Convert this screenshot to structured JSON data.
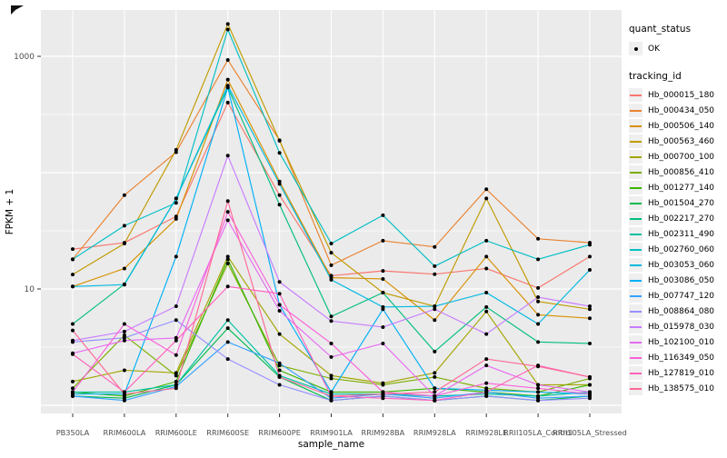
{
  "figure": {
    "panel_bg": "#EBEBEB",
    "grid_color": "#FFFFFF",
    "point_color": "#000000",
    "tick_color": "#333333",
    "axis_text_color": "#4D4D4D",
    "legend_key_bg": "#EFEFEF"
  },
  "axes": {
    "x_title": "sample_name",
    "y_title": "FPKM + 1",
    "y_ticks": [
      {
        "label": "1000",
        "value": 1000
      },
      {
        "label": "10",
        "value": 10
      }
    ]
  },
  "legend": {
    "quant_title": "quant_status",
    "quant_items": [
      {
        "label": "OK",
        "shape": "point"
      }
    ],
    "tracking_title": "tracking_id"
  },
  "chart_data": {
    "type": "line",
    "title": "",
    "xlabel": "sample_name",
    "ylabel": "FPKM + 1",
    "yscale": "log10",
    "ylim": [
      0.85,
      2600
    ],
    "grid": true,
    "legend_position": "right",
    "point_shape": "filled-circle",
    "x": [
      "PB350LA",
      "RRIM600LA",
      "RRIM600LE",
      "RRIM600SE",
      "RRIM600PE",
      "RRIM901LA",
      "RRIM928BA",
      "RRIM928LA",
      "RRIM928LE",
      "RRII105LA_Control",
      "RRII105LA_Stressed"
    ],
    "series": [
      {
        "name": "Hb_000015_180",
        "color": "#F8766D",
        "values": [
          22,
          25,
          42,
          400,
          64,
          13,
          14.3,
          13.4,
          15,
          10.2,
          19
        ]
      },
      {
        "name": "Hb_000434_050",
        "color": "#EA8331",
        "values": [
          18,
          64,
          150,
          930,
          190,
          16,
          26,
          23,
          72,
          27,
          25
        ]
      },
      {
        "name": "Hb_000506_140",
        "color": "#D89000",
        "values": [
          10.5,
          15,
          40,
          630,
          84,
          12.5,
          12.2,
          5.4,
          19,
          6,
          5.6
        ]
      },
      {
        "name": "Hb_000563_460",
        "color": "#C09B00",
        "values": [
          13.3,
          24.6,
          157,
          1900,
          188,
          20.5,
          9.3,
          7.1,
          60,
          7.8,
          6.7
        ]
      },
      {
        "name": "Hb_000700_100",
        "color": "#A3A500",
        "values": [
          1.6,
          2.0,
          1.9,
          19,
          4.1,
          1.8,
          1.55,
          1.9,
          6.4,
          1.5,
          1.5
        ]
      },
      {
        "name": "Hb_000856_410",
        "color": "#7CAE00",
        "values": [
          1.4,
          4.0,
          1.8,
          16.6,
          2.2,
          1.7,
          1.5,
          1.75,
          1.4,
          1.3,
          1.7
        ]
      },
      {
        "name": "Hb_001277_140",
        "color": "#39B600",
        "values": [
          1.3,
          1.2,
          1.6,
          18,
          2.0,
          1.3,
          1.3,
          1.4,
          1.3,
          1.2,
          1.5
        ]
      },
      {
        "name": "Hb_001504_270",
        "color": "#00BB4E",
        "values": [
          1.2,
          1.15,
          1.5,
          4.6,
          1.75,
          1.1,
          1.2,
          1.1,
          1.2,
          1.1,
          1.2
        ]
      },
      {
        "name": "Hb_002217_270",
        "color": "#00BF7D",
        "values": [
          5.0,
          11,
          60,
          540,
          53,
          5.8,
          9.3,
          2.9,
          7.0,
          3.5,
          3.4
        ]
      },
      {
        "name": "Hb_002311_490",
        "color": "#00C1A3",
        "values": [
          1.3,
          1.3,
          1.5,
          5.4,
          1.8,
          1.25,
          1.25,
          1.2,
          1.25,
          1.2,
          1.3
        ]
      },
      {
        "name": "Hb_002760_060",
        "color": "#00BFC4",
        "values": [
          18,
          35,
          55,
          1700,
          148,
          24.6,
          43,
          15.7,
          26,
          18,
          24
        ]
      },
      {
        "name": "Hb_003053_060",
        "color": "#00BAE0",
        "values": [
          10.5,
          10.9,
          60,
          560,
          80,
          12,
          7.0,
          7.1,
          9.3,
          5,
          14.6
        ]
      },
      {
        "name": "Hb_003086_050",
        "color": "#00B0F6",
        "values": [
          1.25,
          1.25,
          19,
          540,
          7.3,
          1.3,
          6.7,
          1.4,
          1.35,
          1.3,
          1.25
        ]
      },
      {
        "name": "Hb_007747_120",
        "color": "#35A2FF",
        "values": [
          1.2,
          1.1,
          1.45,
          3.5,
          2.3,
          1.15,
          1.25,
          1.15,
          1.3,
          1.15,
          1.2
        ]
      },
      {
        "name": "Hb_008864_080",
        "color": "#9590FF",
        "values": [
          3.5,
          3.8,
          5.4,
          2.5,
          1.5,
          1.1,
          1.2,
          1.1,
          1.2,
          1.1,
          1.15
        ]
      },
      {
        "name": "Hb_015978_030",
        "color": "#C77CFF",
        "values": [
          3.6,
          4.3,
          7.1,
          140,
          11.5,
          5.3,
          4.7,
          6.7,
          4.1,
          8.5,
          7.1
        ]
      },
      {
        "name": "Hb_102100_010",
        "color": "#E76BF3",
        "values": [
          2.8,
          3.6,
          3.8,
          39,
          6.5,
          2.6,
          3.4,
          1.2,
          2.2,
          1.5,
          1.3
        ]
      },
      {
        "name": "Hb_116349_050",
        "color": "#FA62DB",
        "values": [
          1.3,
          5.0,
          2.7,
          46,
          7.3,
          3.4,
          1.3,
          1.2,
          1.55,
          1.4,
          1.25
        ]
      },
      {
        "name": "Hb_127819_010",
        "color": "#FF62BC",
        "values": [
          2.75,
          1.3,
          3.6,
          10.5,
          9.1,
          1.2,
          1.15,
          1.1,
          1.3,
          2.2,
          1.75
        ]
      },
      {
        "name": "Hb_138575_010",
        "color": "#FF6A98",
        "values": [
          4.4,
          1.25,
          1.4,
          57,
          1.75,
          1.2,
          1.25,
          1.3,
          2.5,
          2.16,
          1.75
        ]
      }
    ]
  }
}
